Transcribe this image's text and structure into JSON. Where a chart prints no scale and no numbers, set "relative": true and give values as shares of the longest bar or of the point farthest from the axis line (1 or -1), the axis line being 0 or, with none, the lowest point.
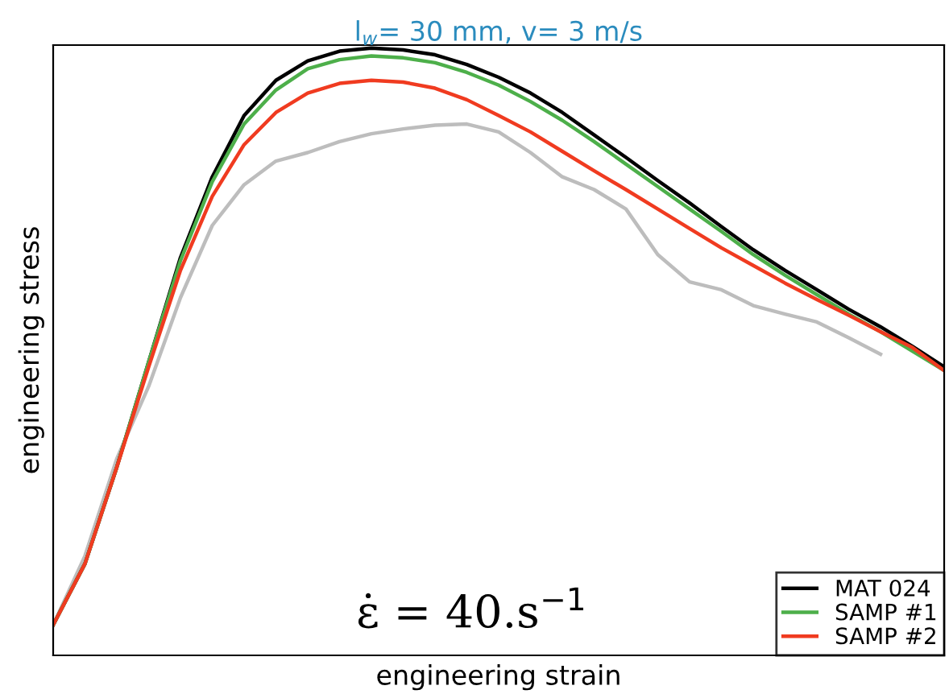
{
  "chart_data": {
    "type": "line",
    "title": "l$_{w}$= 30 mm, v= 3 m/s",
    "xlabel": "engineering strain",
    "ylabel": "engineering stress",
    "relative": true,
    "tick_labels": false,
    "legend": "bottom right",
    "marker": "none",
    "line_style": "solid",
    "annotations": [
      "ε̇ = 40.s$^{−1}$"
    ],
    "categories": [
      null,
      null,
      null,
      null,
      null,
      null,
      null,
      null,
      null,
      null,
      null,
      null,
      null,
      null,
      null,
      null,
      null,
      null,
      null,
      null,
      null,
      null,
      null,
      null,
      null,
      null,
      null,
      null,
      null
    ],
    "series": [
      {
        "color": "#bdbdbd",
        "values": [
          0.05,
          0.164,
          0.324,
          0.443,
          0.589,
          0.708,
          0.775,
          0.814,
          0.828,
          0.846,
          0.859,
          0.867,
          0.873,
          0.875,
          0.862,
          0.828,
          0.788,
          0.767,
          0.735,
          0.66,
          0.615,
          0.602,
          0.576,
          0.562,
          0.549,
          0.523,
          0.496,
          null,
          null
        ]
      },
      {
        "name": "MAT 024",
        "color": "#000000",
        "values": [
          0.05,
          0.151,
          0.31,
          0.483,
          0.655,
          0.788,
          0.889,
          0.947,
          0.979,
          0.995,
          1.0,
          0.997,
          0.989,
          0.973,
          0.952,
          0.926,
          0.894,
          0.857,
          0.82,
          0.782,
          0.745,
          0.706,
          0.668,
          0.634,
          0.602,
          0.57,
          0.541,
          0.509,
          0.475
        ]
      },
      {
        "name": "SAMP #1",
        "color": "#4daf4a",
        "values": [
          0.05,
          0.151,
          0.31,
          0.483,
          0.65,
          0.78,
          0.875,
          0.931,
          0.966,
          0.981,
          0.987,
          0.984,
          0.976,
          0.96,
          0.939,
          0.912,
          0.881,
          0.846,
          0.809,
          0.772,
          0.735,
          0.698,
          0.66,
          0.626,
          0.594,
          0.562,
          0.533,
          0.501,
          0.469
        ]
      },
      {
        "name": "SAMP #2",
        "color": "#f03b20",
        "values": [
          0.05,
          0.151,
          0.31,
          0.475,
          0.634,
          0.756,
          0.841,
          0.894,
          0.926,
          0.942,
          0.947,
          0.944,
          0.934,
          0.915,
          0.889,
          0.862,
          0.83,
          0.798,
          0.767,
          0.735,
          0.703,
          0.671,
          0.642,
          0.613,
          0.586,
          0.56,
          0.533,
          0.507,
          0.469
        ]
      }
    ]
  }
}
